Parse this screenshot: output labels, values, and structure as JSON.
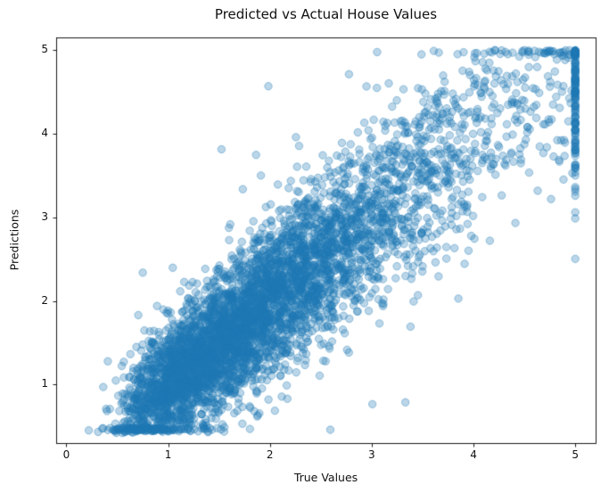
{
  "chart_data": {
    "type": "scatter",
    "title": "Predicted vs Actual House Values",
    "xlabel": "True Values",
    "ylabel": "Predictions",
    "xlim": [
      -0.1,
      5.2
    ],
    "ylim": [
      0.3,
      5.15
    ],
    "xticks": [
      0,
      1,
      2,
      3,
      4,
      5
    ],
    "yticks": [
      1,
      2,
      3,
      4,
      5
    ],
    "grid": false,
    "legend": null,
    "point_color": "#1f77b4",
    "point_alpha": 0.3,
    "point_radius": 4.2,
    "description": "Dense diagonal cloud of semi-transparent blue points from about (0.45,0.5) up to (5,5); predictions roughly equal true values with noise growing at higher values; a dense vertical strip of points at x=5 (clipped true values) spanning y of about 1.6 to 5 with a dark cluster at (5,5); scattered outliers such as points near (0.2,3.3), (1.0,3.9), (1.6,3.8) and (2.6,0.6).",
    "sample_points": [
      [
        0.5,
        0.55
      ],
      [
        0.8,
        0.9
      ],
      [
        1.0,
        1.1
      ],
      [
        1.5,
        1.4
      ],
      [
        2.0,
        2.1
      ],
      [
        2.5,
        2.4
      ],
      [
        3.0,
        2.9
      ],
      [
        3.5,
        3.6
      ],
      [
        4.0,
        3.8
      ],
      [
        4.5,
        4.3
      ],
      [
        0.2,
        3.27
      ],
      [
        1.0,
        3.9
      ],
      [
        1.6,
        3.8
      ],
      [
        2.6,
        0.6
      ],
      [
        5.0,
        5.0
      ],
      [
        5.0,
        4.5
      ],
      [
        5.0,
        3.5
      ],
      [
        5.0,
        2.5
      ],
      [
        5.0,
        1.7
      ]
    ],
    "generator": {
      "seed": 7,
      "n_points": 5160,
      "x_log_mean": 0.62,
      "x_log_sd": 0.52,
      "x_clip_max": 5.0,
      "noise_base": 0.26,
      "noise_slope": 0.09,
      "outlier_prob": 0.02,
      "outlier_scale": 2.3,
      "y_clip_max": 5.0,
      "y_floor": 0.48,
      "strip_top_frac": 0.18,
      "strip_sd": 0.85,
      "strip_min": 1.55
    }
  }
}
